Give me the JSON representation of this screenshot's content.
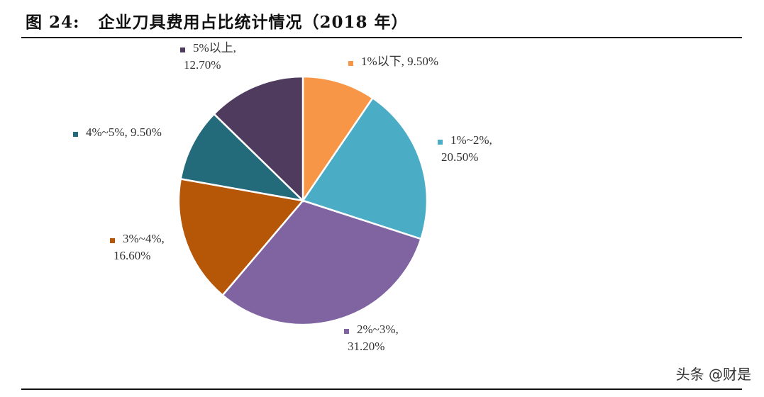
{
  "figure": {
    "number": "图 24:",
    "title": "企业刀具费用占比统计情况（2018 年）"
  },
  "chart_data": {
    "type": "pie",
    "title": "企业刀具费用占比统计情况（2018 年）",
    "start_angle_deg": 0,
    "direction": "clockwise",
    "slices": [
      {
        "label": "1%以下",
        "value": 9.5,
        "value_label": "9.50%",
        "color": "#F79646"
      },
      {
        "label": "1%~2%",
        "value": 20.5,
        "value_label": "20.50%",
        "color": "#4BACC6"
      },
      {
        "label": "2%~3%",
        "value": 31.2,
        "value_label": "31.20%",
        "color": "#8064A2"
      },
      {
        "label": "3%~4%",
        "value": 16.6,
        "value_label": "16.60%",
        "color": "#B65708"
      },
      {
        "label": "4%~5%",
        "value": 9.5,
        "value_label": "9.50%",
        "color": "#236A7B"
      },
      {
        "label": "5%以上",
        "value": 12.7,
        "value_label": "12.70%",
        "color": "#4E3B5E"
      }
    ]
  },
  "watermark": "头条 @财是"
}
